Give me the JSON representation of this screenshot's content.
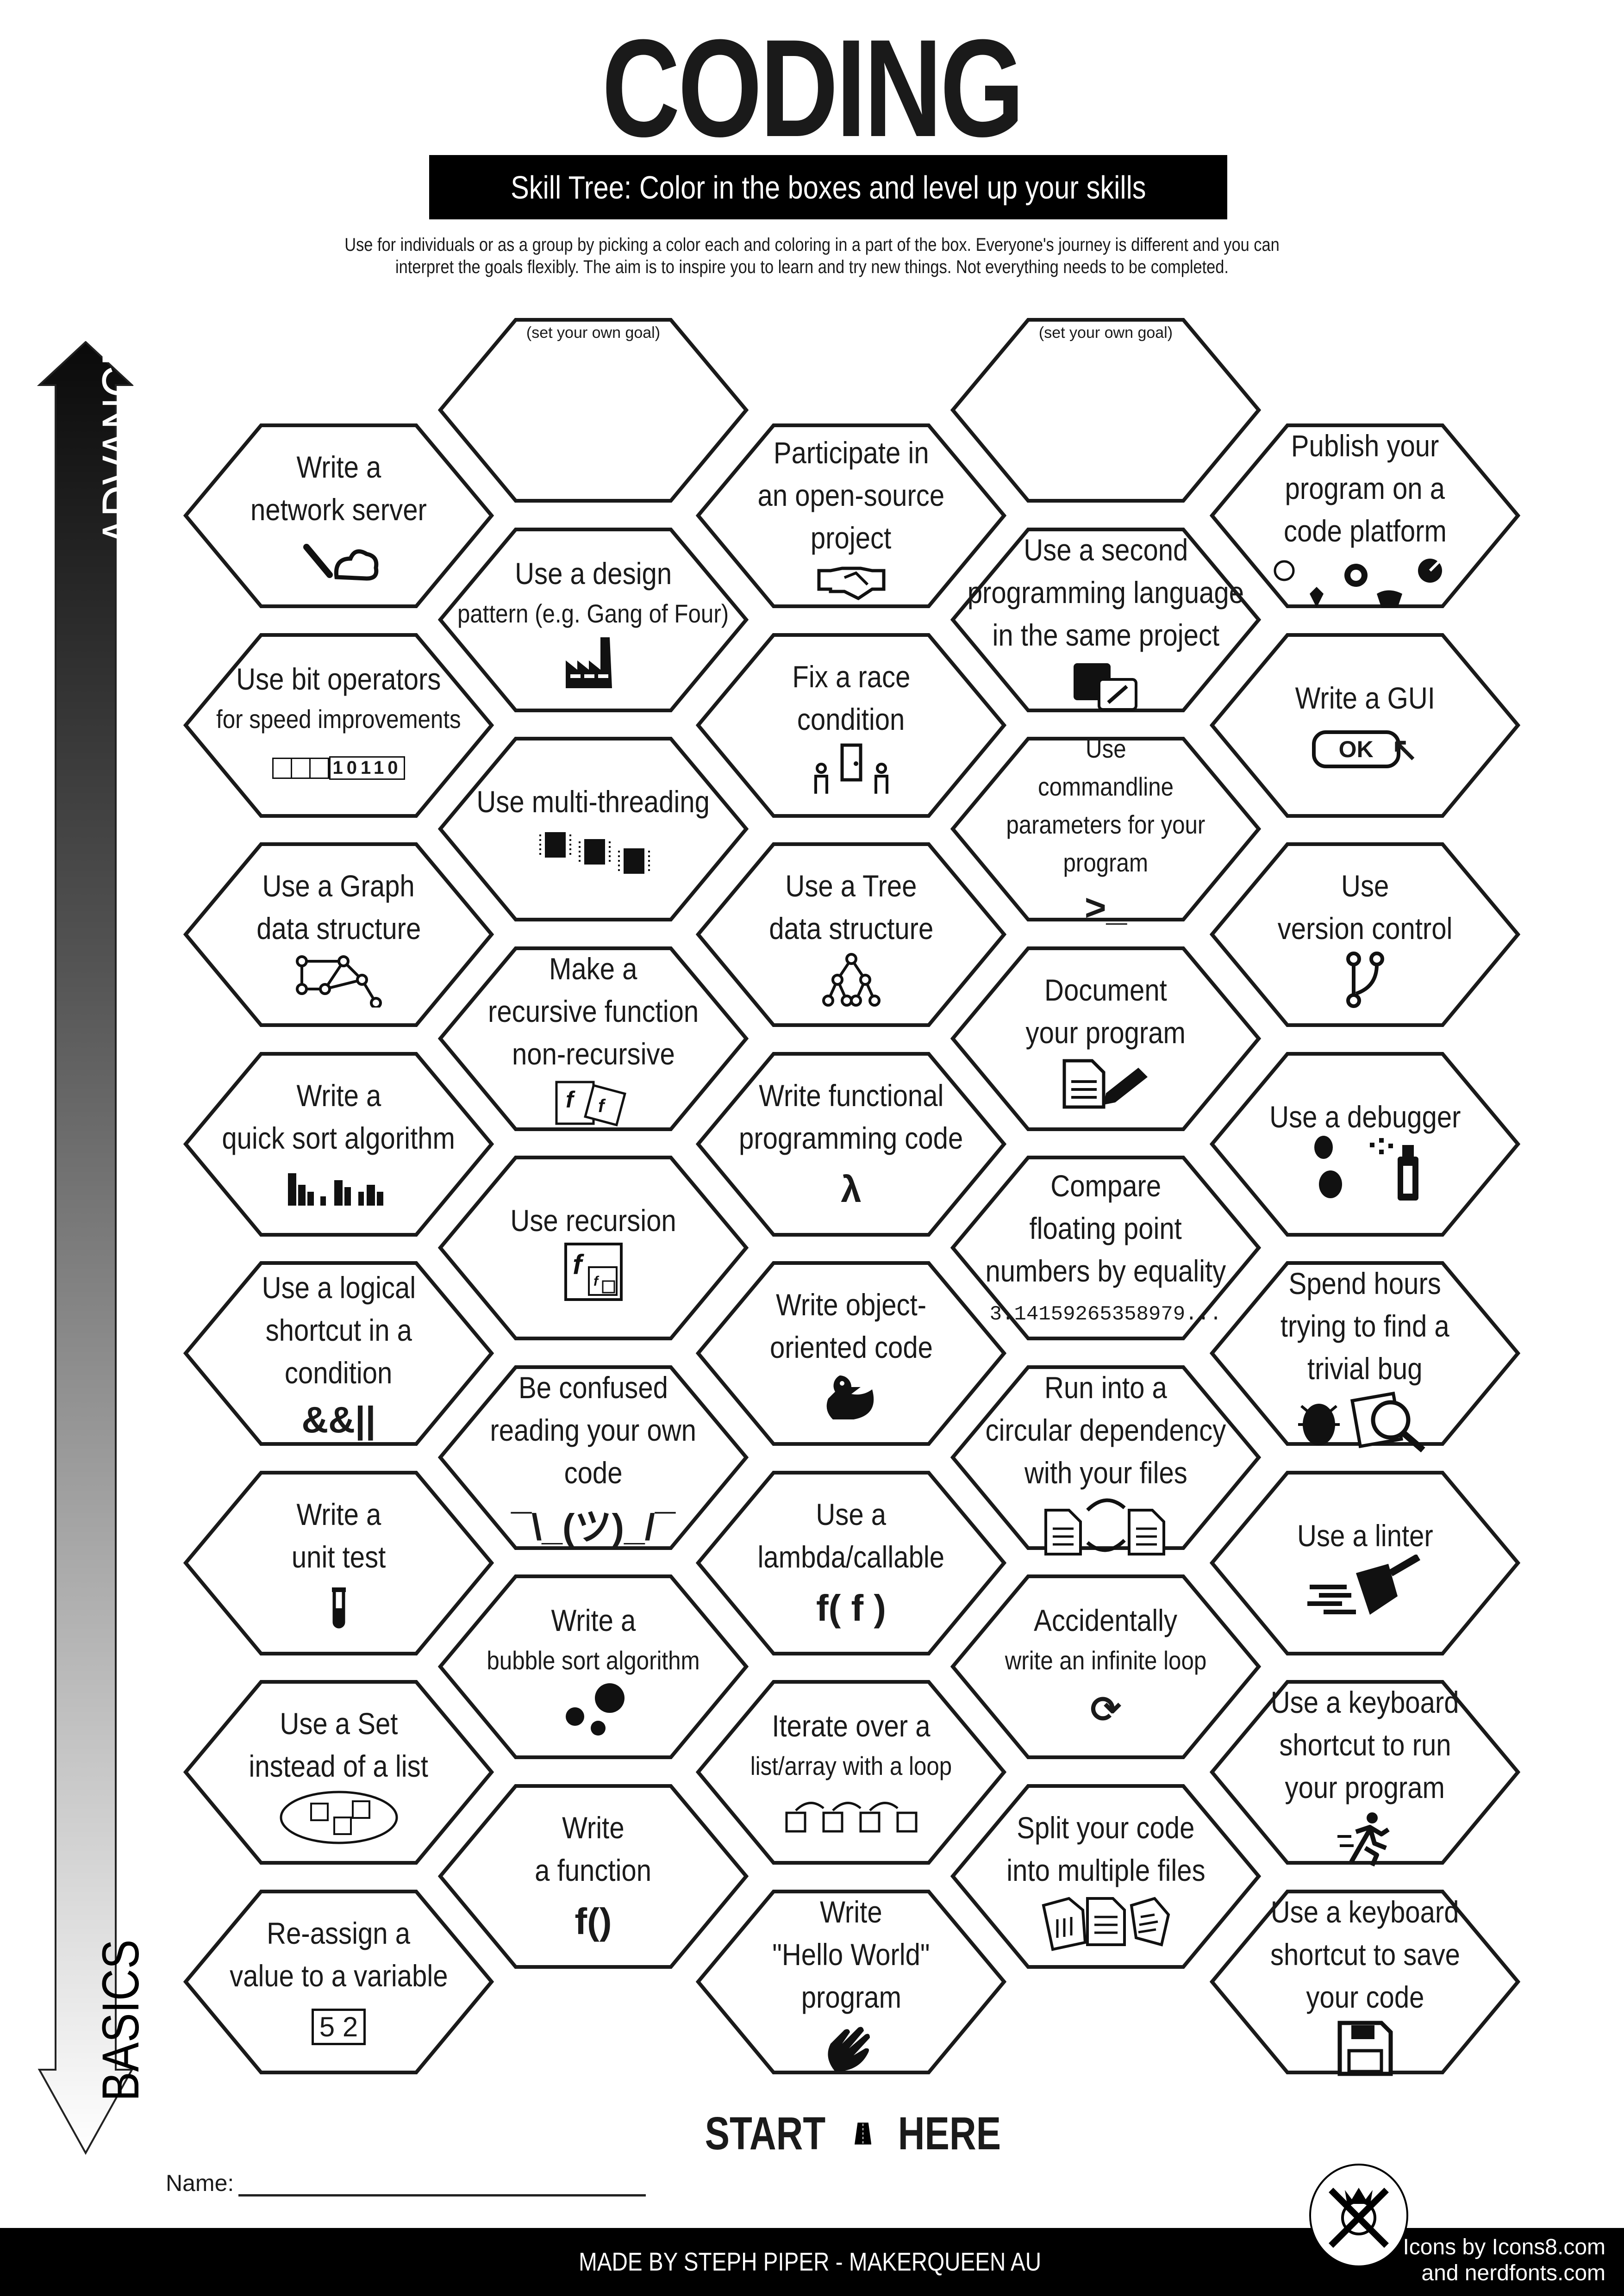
{
  "header": {
    "title": "CODING",
    "subtitle": "Skill Tree:  Color in the boxes and level up your skills",
    "description": [
      "Use for individuals or as a group by picking a color each and coloring in a part of the box.  Everyone's journey is different and you can",
      "interpret the goals flexibly.  The aim is to inspire you to learn and try new things. Not everything needs to be completed."
    ]
  },
  "axis": {
    "top_label": "ADVANCED",
    "bottom_label": "BASICS"
  },
  "columns": [
    {
      "hexes": [
        {
          "lines": [
            "Write a",
            "network server"
          ],
          "icon": "plug-cloud"
        },
        {
          "lines": [
            "Use bit operators",
            "for speed improvements"
          ],
          "icon": "bits",
          "icon_text": "10110"
        },
        {
          "lines": [
            "Use a Graph",
            "data structure"
          ],
          "icon": "graph"
        },
        {
          "lines": [
            "Write a",
            "quick sort algorithm"
          ],
          "icon": "bars"
        },
        {
          "lines": [
            "Use a logical",
            "shortcut in a",
            "condition"
          ],
          "icon": "text",
          "icon_text": "&&||"
        },
        {
          "lines": [
            "Write a",
            "unit test"
          ],
          "icon": "test-tube"
        },
        {
          "lines": [
            "Use a Set",
            "instead of a list"
          ],
          "icon": "set"
        },
        {
          "lines": [
            "Re-assign a",
            "value to a variable"
          ],
          "icon": "reassign",
          "icon_text": "5 2"
        }
      ]
    },
    {
      "hexes": [
        {
          "goal": "(set your own goal)"
        },
        {
          "lines": [
            "Use a design",
            "pattern (e.g. Gang of Four)"
          ],
          "icon": "factory"
        },
        {
          "lines": [
            "Use multi-threading"
          ],
          "icon": "chips"
        },
        {
          "lines": [
            "Make a",
            "recursive function",
            "non-recursive"
          ],
          "icon": "functions"
        },
        {
          "lines": [
            "Use recursion"
          ],
          "icon": "recursion"
        },
        {
          "lines": [
            "Be confused",
            "reading your own",
            "code"
          ],
          "icon": "text",
          "icon_text": "¯\\_(ツ)_/¯"
        },
        {
          "lines": [
            "Write a",
            "bubble sort algorithm"
          ],
          "icon": "bubbles"
        },
        {
          "lines": [
            "Write",
            "a function"
          ],
          "icon": "text",
          "icon_text": "f()"
        }
      ]
    },
    {
      "hexes": [
        {
          "lines": [
            "Participate in",
            "an open-source",
            "project"
          ],
          "icon": "handshake"
        },
        {
          "lines": [
            "Fix a race",
            "condition"
          ],
          "icon": "race"
        },
        {
          "lines": [
            "Use a Tree",
            "data structure"
          ],
          "icon": "tree"
        },
        {
          "lines": [
            "Write functional",
            "programming code"
          ],
          "icon": "text",
          "icon_text": "λ"
        },
        {
          "lines": [
            "Write object-",
            "oriented code"
          ],
          "icon": "duck"
        },
        {
          "lines": [
            "Use a",
            "lambda/callable"
          ],
          "icon": "text",
          "icon_text": "f( f )"
        },
        {
          "lines": [
            "Iterate over a",
            "list/array with a loop"
          ],
          "icon": "loop-boxes"
        },
        {
          "lines": [
            "Write",
            "\"Hello World\"",
            "program"
          ],
          "icon": "wave"
        }
      ]
    },
    {
      "hexes": [
        {
          "goal": "(set your own goal)"
        },
        {
          "lines": [
            "Use a second",
            "programming language",
            "in the same project"
          ],
          "icon": "languages"
        },
        {
          "lines": [
            "Use",
            "commandline",
            "parameters for your",
            "program"
          ],
          "icon": "text",
          "icon_text": ">_"
        },
        {
          "lines": [
            "Document",
            "your program"
          ],
          "icon": "document"
        },
        {
          "lines": [
            "Compare",
            "floating point",
            "numbers by equality"
          ],
          "icon": "text",
          "icon_text": "3.14159265358979..."
        },
        {
          "lines": [
            "Run into a",
            "circular dependency",
            "with your files"
          ],
          "icon": "circular"
        },
        {
          "lines": [
            "Accidentally",
            "write an infinite loop"
          ],
          "icon": "text",
          "icon_text": "⟳"
        },
        {
          "lines": [
            "Split your code",
            "into multiple files"
          ],
          "icon": "files"
        }
      ]
    },
    {
      "hexes": [
        {
          "lines": [
            "Publish your",
            "program on a",
            "code platform"
          ],
          "icon": "platforms"
        },
        {
          "lines": [
            "Write a GUI"
          ],
          "icon": "ok-button",
          "icon_text": "OK"
        },
        {
          "lines": [
            "Use",
            "version control"
          ],
          "icon": "branch"
        },
        {
          "lines": [
            "Use a debugger"
          ],
          "icon": "debugger"
        },
        {
          "lines": [
            "Spend hours",
            "trying to find a",
            "trivial bug"
          ],
          "icon": "bug-search"
        },
        {
          "lines": [
            "Use a linter"
          ],
          "icon": "linter"
        },
        {
          "lines": [
            "Use a keyboard",
            "shortcut to run",
            "your program"
          ],
          "icon": "run"
        },
        {
          "lines": [
            "Use a keyboard",
            "shortcut to save",
            "your code"
          ],
          "icon": "floppy"
        }
      ]
    }
  ],
  "start": {
    "left": "START",
    "right": "HERE"
  },
  "name_label": "Name:",
  "footer": {
    "made_by": "MADE BY STEPH PIPER  -  MAKERQUEEN AU",
    "credits": [
      "Icons by Icons8.com",
      "and nerdfonts.com"
    ]
  },
  "colors": {
    "ink": "#1a1a1a",
    "footer_bg": "#000000",
    "arrow_top": "#111111",
    "arrow_bottom": "#ffffff"
  }
}
